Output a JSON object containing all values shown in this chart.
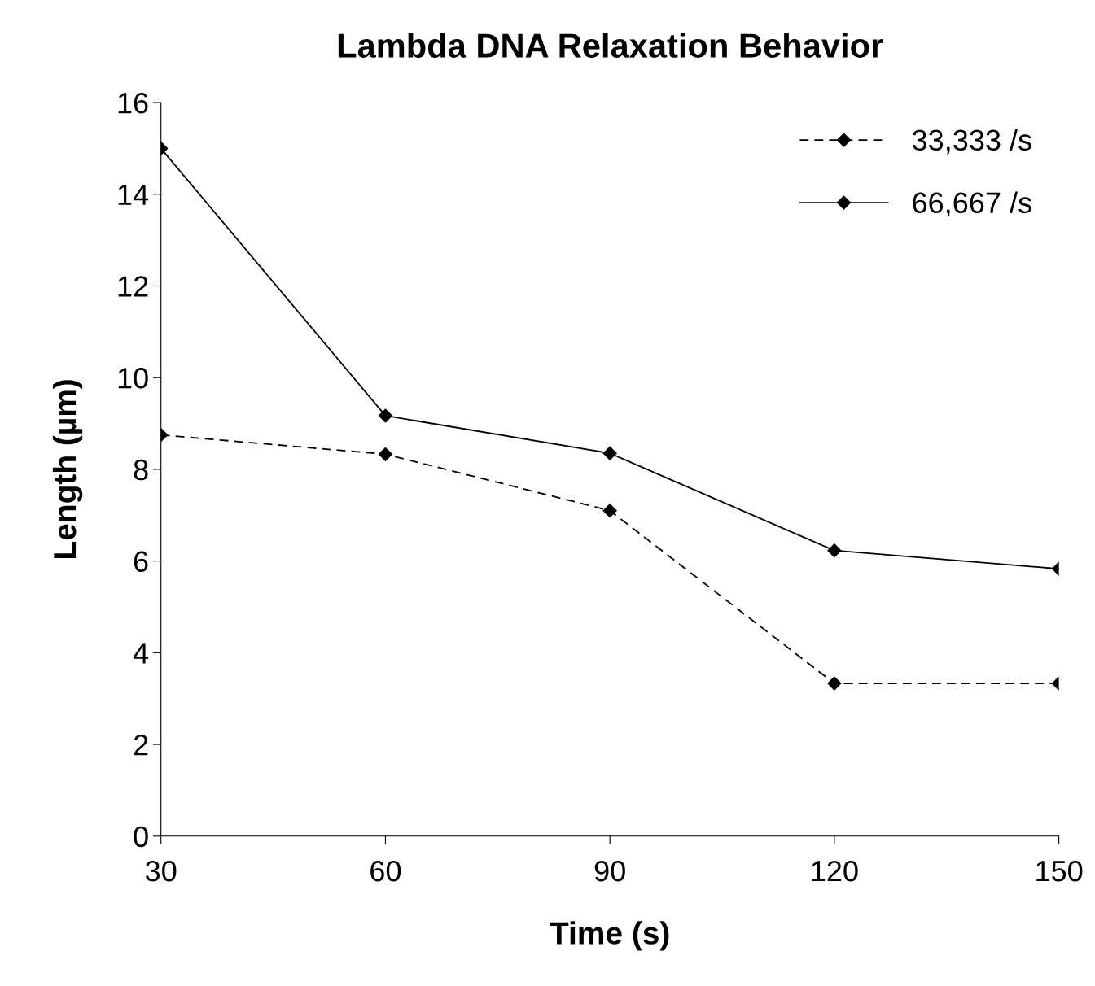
{
  "chart_data": {
    "type": "line",
    "title": "Lambda DNA Relaxation Behavior",
    "xlabel": "Time (s)",
    "ylabel": "Length (µm)",
    "x": [
      30,
      60,
      90,
      120,
      150
    ],
    "series": [
      {
        "name": "33,333 /s",
        "color": "#000000",
        "line_style": "dashed",
        "values": [
          8.75,
          8.33,
          7.1,
          3.33,
          3.33
        ]
      },
      {
        "name": "66,667 /s",
        "color": "#000000",
        "line_style": "solid",
        "values": [
          15.0,
          9.17,
          8.35,
          6.23,
          5.83
        ]
      }
    ],
    "xlim": [
      30,
      150
    ],
    "xticks": [
      30,
      60,
      90,
      120,
      150
    ],
    "ylim": [
      0,
      16
    ],
    "yticks": [
      0,
      2,
      4,
      6,
      8,
      10,
      12,
      14,
      16
    ],
    "marker": "diamond",
    "grid": false,
    "legend": "top right"
  }
}
